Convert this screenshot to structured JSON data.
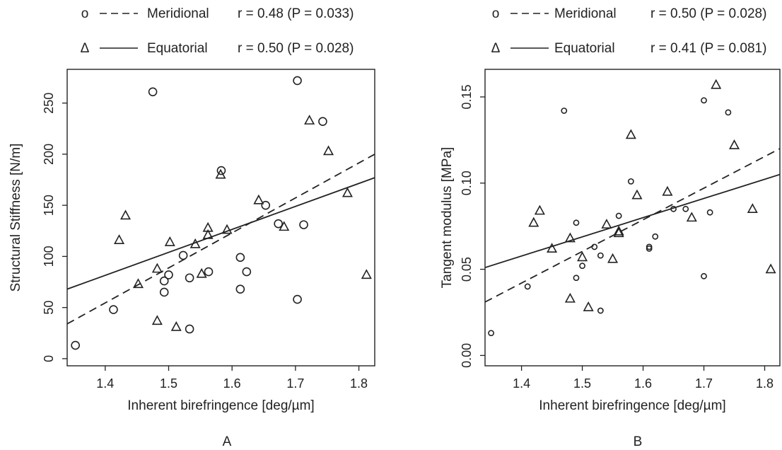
{
  "chart_data": [
    {
      "panel": "A",
      "type": "scatter",
      "xlabel": "Inherent birefringence [deg/µm]",
      "ylabel": "Structural Stiffness [N/m]",
      "xlim": [
        1.34,
        1.825
      ],
      "ylim": [
        -7,
        283
      ],
      "xticks": [
        1.4,
        1.5,
        1.6,
        1.7,
        1.8
      ],
      "yticks": [
        0,
        50,
        100,
        150,
        200,
        250
      ],
      "xtick_labels": [
        "1.4",
        "1.5",
        "1.6",
        "1.7",
        "1.8"
      ],
      "ytick_labels": [
        "0",
        "50",
        "100",
        "150",
        "200",
        "250"
      ],
      "legend": [
        {
          "symbol": "o",
          "line": "dashed",
          "name": "Meridional",
          "stat": "r = 0.48 (P = 0.033)"
        },
        {
          "symbol": "Δ",
          "line": "solid",
          "name": "Equatorial",
          "stat": "r = 0.50 (P = 0.028)"
        }
      ],
      "series": [
        {
          "name": "Meridional",
          "marker": "circle",
          "fit": {
            "style": "dashed",
            "x": [
              1.34,
              1.825
            ],
            "y": [
              34,
              200
            ]
          },
          "points": [
            [
              1.353,
              13
            ],
            [
              1.413,
              48
            ],
            [
              1.475,
              261
            ],
            [
              1.493,
              76
            ],
            [
              1.493,
              65
            ],
            [
              1.5,
              82
            ],
            [
              1.523,
              101
            ],
            [
              1.533,
              79
            ],
            [
              1.533,
              29
            ],
            [
              1.563,
              85
            ],
            [
              1.583,
              184
            ],
            [
              1.613,
              99
            ],
            [
              1.613,
              68
            ],
            [
              1.623,
              85
            ],
            [
              1.653,
              150
            ],
            [
              1.673,
              132
            ],
            [
              1.703,
              272
            ],
            [
              1.703,
              58
            ],
            [
              1.713,
              131
            ],
            [
              1.743,
              232
            ]
          ]
        },
        {
          "name": "Equatorial",
          "marker": "triangle",
          "fit": {
            "style": "solid",
            "x": [
              1.34,
              1.825
            ],
            "y": [
              68,
              177
            ]
          },
          "points": [
            [
              1.422,
              116
            ],
            [
              1.432,
              140
            ],
            [
              1.452,
              73
            ],
            [
              1.482,
              88
            ],
            [
              1.482,
              37
            ],
            [
              1.502,
              114
            ],
            [
              1.512,
              31
            ],
            [
              1.542,
              112
            ],
            [
              1.552,
              83
            ],
            [
              1.562,
              128
            ],
            [
              1.562,
              121
            ],
            [
              1.582,
              180
            ],
            [
              1.592,
              126
            ],
            [
              1.642,
              155
            ],
            [
              1.682,
              129
            ],
            [
              1.722,
              233
            ],
            [
              1.752,
              203
            ],
            [
              1.782,
              162
            ],
            [
              1.812,
              82
            ]
          ]
        }
      ]
    },
    {
      "panel": "B",
      "type": "scatter",
      "xlabel": "Inherent birefringence [deg/µm]",
      "ylabel": "Tangent modulus [MPa]",
      "xlim": [
        1.34,
        1.825
      ],
      "ylim": [
        -0.006,
        0.166
      ],
      "xticks": [
        1.4,
        1.5,
        1.6,
        1.7,
        1.8
      ],
      "yticks": [
        0.0,
        0.05,
        0.1,
        0.15
      ],
      "xtick_labels": [
        "1.4",
        "1.5",
        "1.6",
        "1.7",
        "1.8"
      ],
      "ytick_labels": [
        "0.00",
        "0.05",
        "0.10",
        "0.15"
      ],
      "legend": [
        {
          "symbol": "o",
          "line": "dashed",
          "name": "Meridional",
          "stat": "r = 0.50 (P = 0.028)"
        },
        {
          "symbol": "Δ",
          "line": "solid",
          "name": "Equatorial",
          "stat": "r = 0.41 (P = 0.081)"
        }
      ],
      "series": [
        {
          "name": "Meridional",
          "marker": "circle",
          "fit": {
            "style": "dashed",
            "x": [
              1.34,
              1.825
            ],
            "y": [
              0.031,
              0.12
            ]
          },
          "points": [
            [
              1.35,
              0.013
            ],
            [
              1.41,
              0.04
            ],
            [
              1.47,
              0.142
            ],
            [
              1.49,
              0.077
            ],
            [
              1.49,
              0.045
            ],
            [
              1.5,
              0.052
            ],
            [
              1.52,
              0.063
            ],
            [
              1.53,
              0.058
            ],
            [
              1.53,
              0.026
            ],
            [
              1.56,
              0.081
            ],
            [
              1.58,
              0.101
            ],
            [
              1.61,
              0.063
            ],
            [
              1.61,
              0.062
            ],
            [
              1.62,
              0.069
            ],
            [
              1.65,
              0.085
            ],
            [
              1.67,
              0.085
            ],
            [
              1.7,
              0.148
            ],
            [
              1.7,
              0.046
            ],
            [
              1.71,
              0.083
            ],
            [
              1.74,
              0.141
            ]
          ]
        },
        {
          "name": "Equatorial",
          "marker": "triangle",
          "fit": {
            "style": "solid",
            "x": [
              1.34,
              1.825
            ],
            "y": [
              0.051,
              0.105
            ]
          },
          "points": [
            [
              1.42,
              0.077
            ],
            [
              1.43,
              0.084
            ],
            [
              1.45,
              0.062
            ],
            [
              1.48,
              0.068
            ],
            [
              1.48,
              0.033
            ],
            [
              1.5,
              0.057
            ],
            [
              1.51,
              0.028
            ],
            [
              1.54,
              0.076
            ],
            [
              1.55,
              0.056
            ],
            [
              1.56,
              0.072
            ],
            [
              1.56,
              0.071
            ],
            [
              1.58,
              0.128
            ],
            [
              1.59,
              0.093
            ],
            [
              1.64,
              0.095
            ],
            [
              1.68,
              0.08
            ],
            [
              1.72,
              0.157
            ],
            [
              1.75,
              0.122
            ],
            [
              1.78,
              0.085
            ],
            [
              1.81,
              0.05
            ]
          ]
        }
      ]
    }
  ],
  "colors": {
    "ink": "#222222",
    "background": "#ffffff"
  }
}
